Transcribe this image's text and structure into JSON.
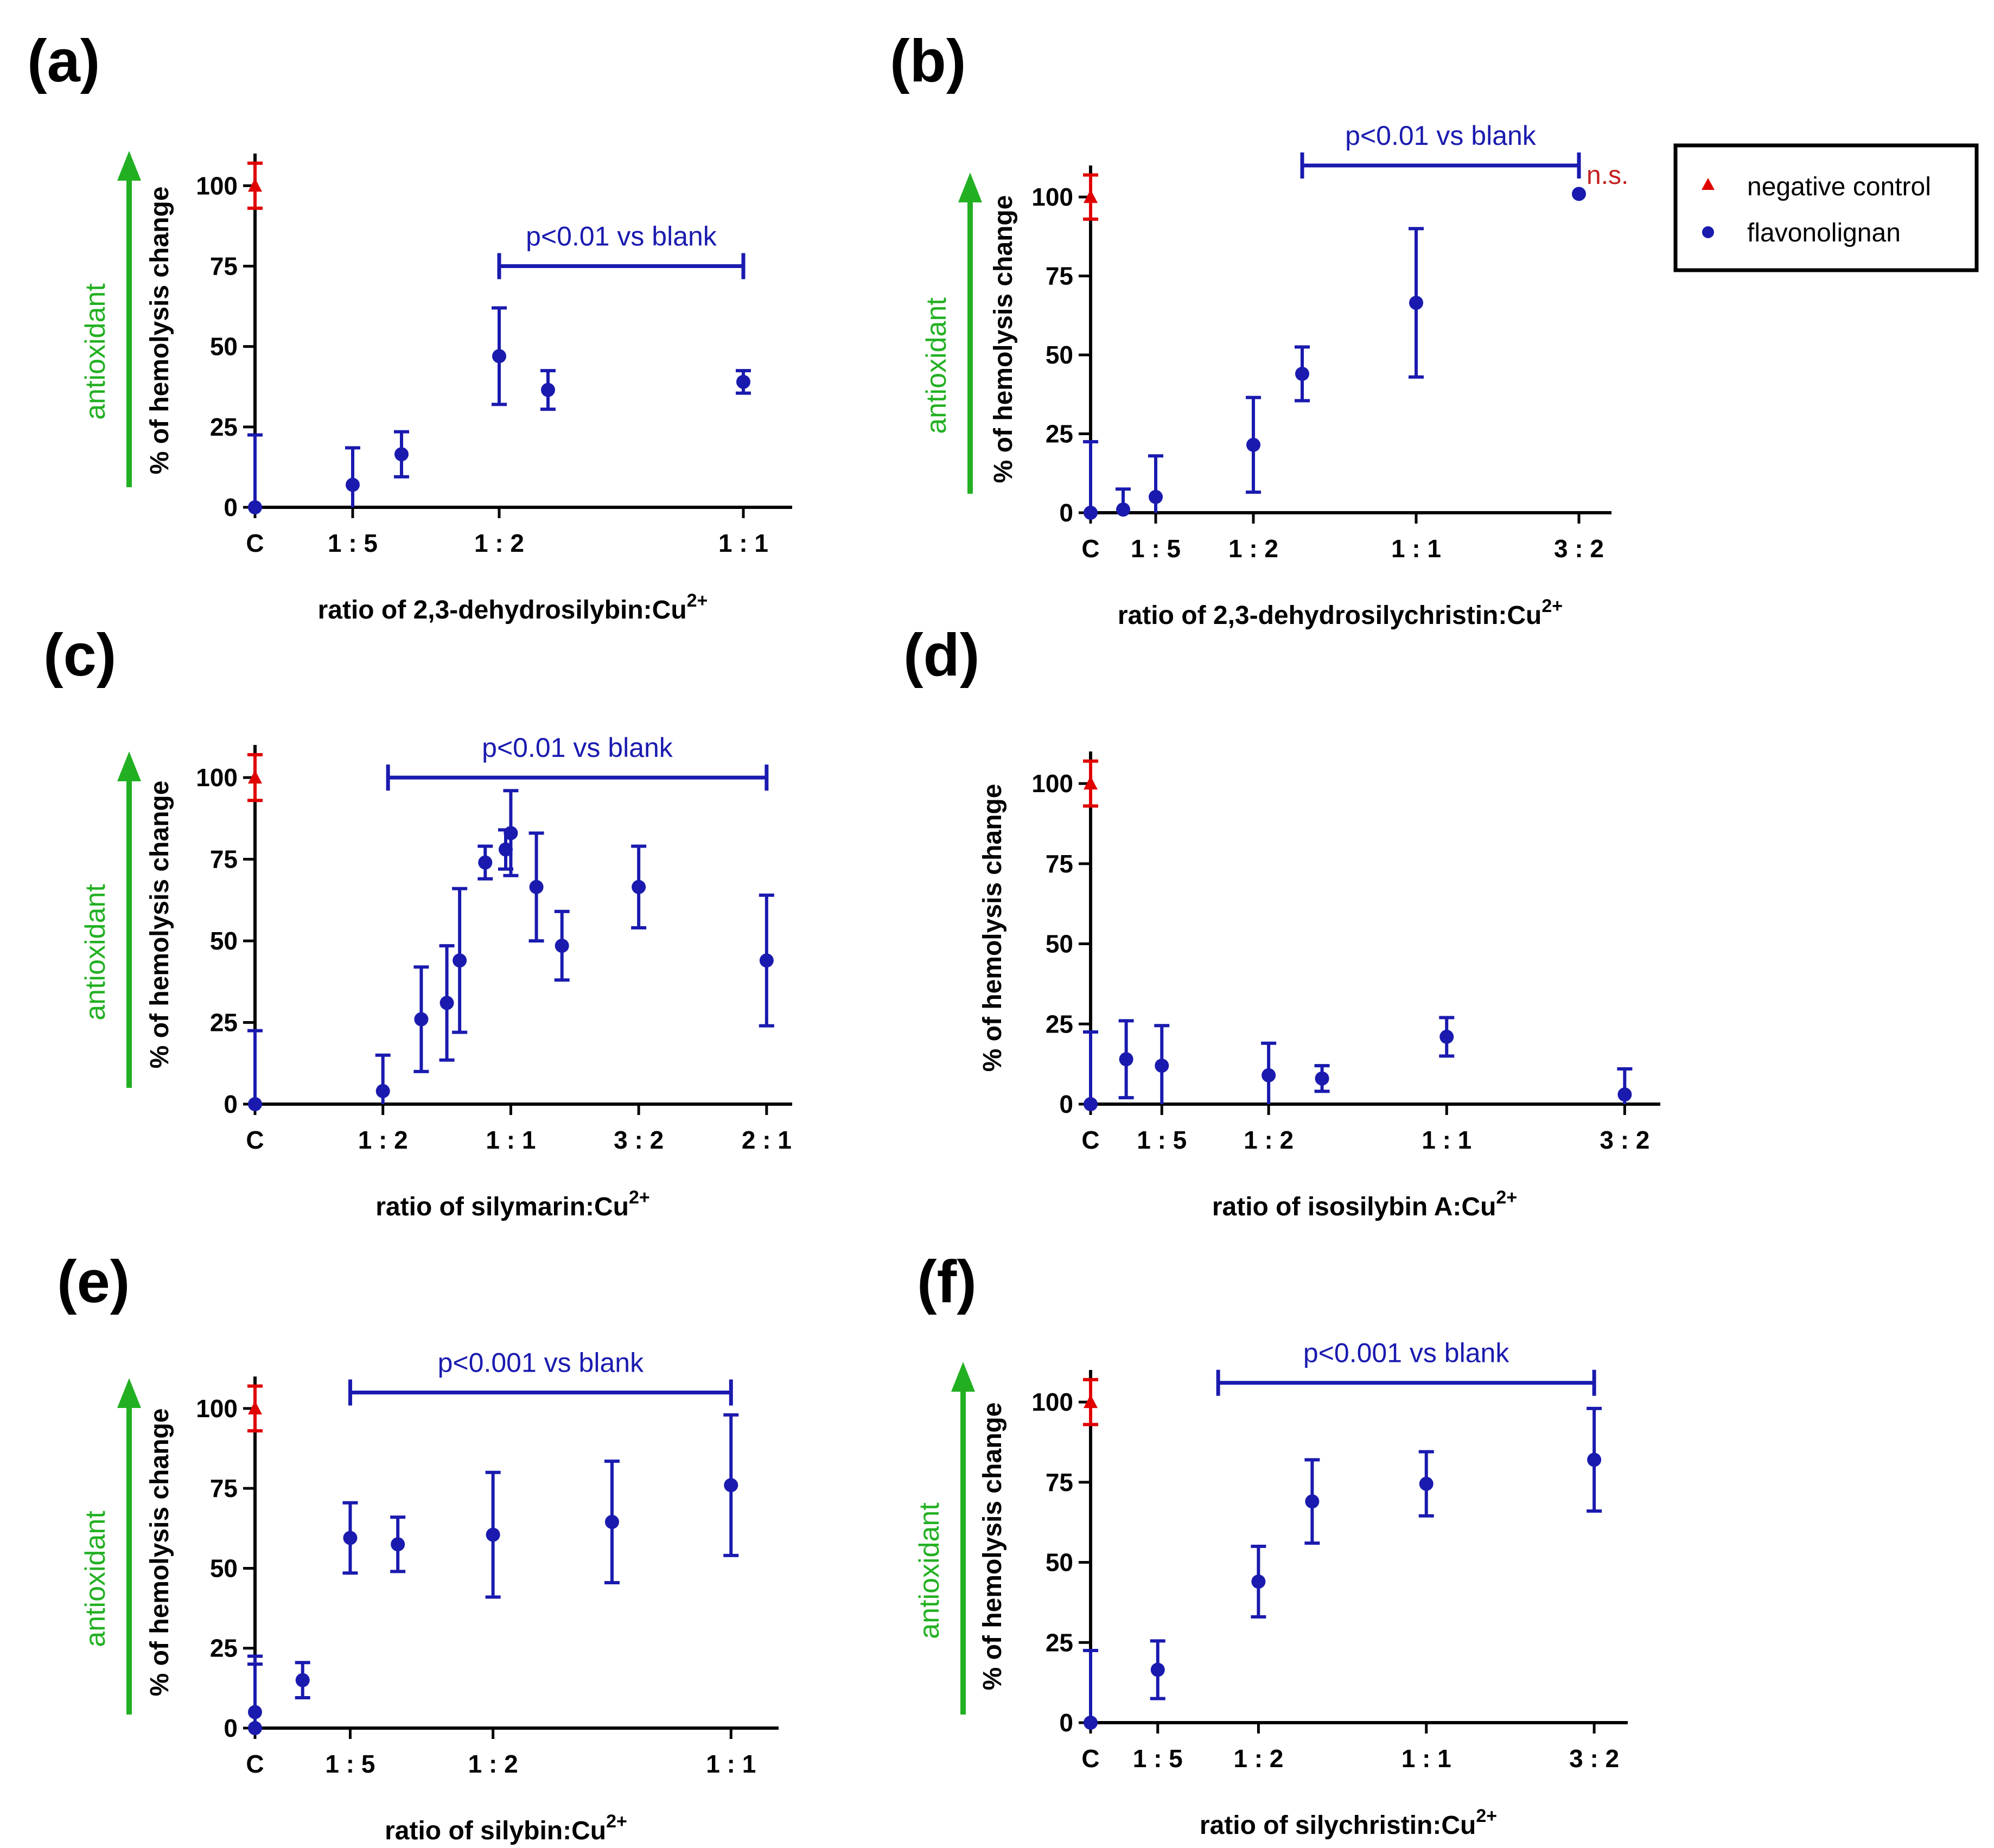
{
  "colors": {
    "flavonolignan": "#1a1aaf",
    "negative_control": "#e00000",
    "antioxidant": "#22b022",
    "ns": "#c41e1e",
    "axis": "#000000"
  },
  "legend": {
    "items": [
      {
        "label": "negative control",
        "marker": "triangle",
        "color": "#e00000"
      },
      {
        "label": "flavonolignan",
        "marker": "circle",
        "color": "#1a1aaf"
      }
    ]
  },
  "annotations": {
    "antioxidant": "antioxidant",
    "ns": "n.s."
  },
  "chart_data": [
    {
      "panel": "(a)",
      "type": "scatter",
      "xlabel": "ratio of 2,3-dehydrosilybin:Cu",
      "xlabel_sup": "2+",
      "ylabel": "% of hemolysis change",
      "yticks": [
        0,
        25,
        50,
        75,
        100
      ],
      "ylim": [
        0,
        110
      ],
      "xlim": [
        0,
        1.1
      ],
      "xticks": [
        {
          "x": 0,
          "label": "C"
        },
        {
          "x": 0.2,
          "label": "1 : 5"
        },
        {
          "x": 0.5,
          "label": "1 : 2"
        },
        {
          "x": 1.0,
          "label": "1 : 1"
        }
      ],
      "negative_control": {
        "x": 0,
        "y": 100,
        "err": 7
      },
      "blank": {
        "x": 0,
        "y": 0,
        "err": 22.5
      },
      "series": [
        {
          "name": "flavonolignan",
          "points": [
            {
              "x": 0.2,
              "y": 7,
              "err": 11.5
            },
            {
              "x": 0.3,
              "y": 16.5,
              "err": 7
            },
            {
              "x": 0.5,
              "y": 47,
              "err": 15
            },
            {
              "x": 0.6,
              "y": 36.5,
              "err": 6
            },
            {
              "x": 1.0,
              "y": 39,
              "err": 3.5
            }
          ]
        }
      ],
      "bracket": {
        "label": "p<0.01 vs blank",
        "x_from": 0.5,
        "x_to": 1.0,
        "y": 75
      }
    },
    {
      "panel": "(b)",
      "type": "scatter",
      "xlabel": "ratio of 2,3-dehydrosilychristin:Cu",
      "xlabel_sup": "2+",
      "ylabel": "% of hemolysis change",
      "yticks": [
        0,
        25,
        50,
        75,
        100
      ],
      "ylim": [
        0,
        110
      ],
      "xlim": [
        0,
        1.6
      ],
      "xticks": [
        {
          "x": 0,
          "label": "C"
        },
        {
          "x": 0.2,
          "label": "1 : 5"
        },
        {
          "x": 0.5,
          "label": "1 : 2"
        },
        {
          "x": 1.0,
          "label": "1 : 1"
        },
        {
          "x": 1.5,
          "label": "3 : 2"
        }
      ],
      "negative_control": {
        "x": 0,
        "y": 100,
        "err": 7
      },
      "blank": {
        "x": 0,
        "y": 0,
        "err": 22.5
      },
      "series": [
        {
          "name": "flavonolignan",
          "points": [
            {
              "x": 0.1,
              "y": 1,
              "err": 6.5
            },
            {
              "x": 0.2,
              "y": 5,
              "err": 13
            },
            {
              "x": 0.5,
              "y": 21.5,
              "err": 15
            },
            {
              "x": 0.65,
              "y": 44,
              "err": 8.5
            },
            {
              "x": 1.0,
              "y": 66.5,
              "err": 23.5
            },
            {
              "x": 1.5,
              "y": 101,
              "err": 0
            }
          ]
        }
      ],
      "bracket": {
        "label": "p<0.01 vs blank",
        "x_from": 0.65,
        "x_to": 1.5,
        "y": 110
      },
      "ns_at_x": 1.5
    },
    {
      "panel": "(c)",
      "type": "scatter",
      "xlabel": "ratio of silymarin:Cu",
      "xlabel_sup": "2+",
      "ylabel": "% of hemolysis change",
      "yticks": [
        0,
        25,
        50,
        75,
        100
      ],
      "ylim": [
        0,
        110
      ],
      "xlim": [
        0,
        2.1
      ],
      "xticks": [
        {
          "x": 0,
          "label": "C"
        },
        {
          "x": 0.5,
          "label": "1 : 2"
        },
        {
          "x": 1.0,
          "label": "1 : 1"
        },
        {
          "x": 1.5,
          "label": "3 : 2"
        },
        {
          "x": 2.0,
          "label": "2 : 1"
        }
      ],
      "negative_control": {
        "x": 0,
        "y": 100,
        "err": 7
      },
      "blank": {
        "x": 0,
        "y": 0,
        "err": 22.5
      },
      "series": [
        {
          "name": "flavonolignan",
          "points": [
            {
              "x": 0.5,
              "y": 4,
              "err": 11
            },
            {
              "x": 0.65,
              "y": 26,
              "err": 16
            },
            {
              "x": 0.75,
              "y": 31,
              "err": 17.5
            },
            {
              "x": 0.8,
              "y": 44,
              "err": 22
            },
            {
              "x": 0.9,
              "y": 74,
              "err": 5
            },
            {
              "x": 0.98,
              "y": 78,
              "err": 6
            },
            {
              "x": 1.0,
              "y": 83,
              "err": 13
            },
            {
              "x": 1.1,
              "y": 66.5,
              "err": 16.5
            },
            {
              "x": 1.2,
              "y": 48.5,
              "err": 10.5
            },
            {
              "x": 1.5,
              "y": 66.5,
              "err": 12.5
            },
            {
              "x": 2.0,
              "y": 44,
              "err": 20
            }
          ]
        }
      ],
      "bracket": {
        "label": "p<0.01 vs blank",
        "x_from": 0.52,
        "x_to": 2.0,
        "y": 100
      }
    },
    {
      "panel": "(d)",
      "type": "scatter",
      "xlabel": "ratio of isosilybin A:Cu",
      "xlabel_sup": "2+",
      "ylabel": "% of hemolysis change",
      "yticks": [
        0,
        25,
        50,
        75,
        100
      ],
      "ylim": [
        0,
        110
      ],
      "xlim": [
        0,
        1.6
      ],
      "xticks": [
        {
          "x": 0,
          "label": "C"
        },
        {
          "x": 0.2,
          "label": "1 : 5"
        },
        {
          "x": 0.5,
          "label": "1 : 2"
        },
        {
          "x": 1.0,
          "label": "1 : 1"
        },
        {
          "x": 1.5,
          "label": "3 : 2"
        }
      ],
      "negative_control": {
        "x": 0,
        "y": 100,
        "err": 7
      },
      "blank": {
        "x": 0,
        "y": 0,
        "err": 22.5
      },
      "series": [
        {
          "name": "flavonolignan",
          "points": [
            {
              "x": 0.1,
              "y": 14,
              "err": 12
            },
            {
              "x": 0.2,
              "y": 12,
              "err": 12.5
            },
            {
              "x": 0.5,
              "y": 9,
              "err": 10
            },
            {
              "x": 0.65,
              "y": 8,
              "err": 4
            },
            {
              "x": 1.0,
              "y": 21,
              "err": 6
            },
            {
              "x": 1.5,
              "y": 3,
              "err": 8
            }
          ]
        }
      ]
    },
    {
      "panel": "(e)",
      "type": "scatter",
      "xlabel": "ratio of silybin:Cu",
      "xlabel_sup": "2+",
      "ylabel": "% of hemolysis change",
      "yticks": [
        0,
        25,
        50,
        75,
        100
      ],
      "ylim": [
        0,
        110
      ],
      "xlim": [
        0,
        1.1
      ],
      "xticks": [
        {
          "x": 0,
          "label": "C"
        },
        {
          "x": 0.2,
          "label": "1 : 5"
        },
        {
          "x": 0.5,
          "label": "1 : 2"
        },
        {
          "x": 1.0,
          "label": "1 : 1"
        }
      ],
      "negative_control": {
        "x": 0,
        "y": 100,
        "err": 7
      },
      "blank": {
        "x": 0,
        "y": 0,
        "err": 22.5
      },
      "series": [
        {
          "name": "flavonolignan",
          "points": [
            {
              "x": 0,
              "y": 5,
              "err": 15
            },
            {
              "x": 0.1,
              "y": 15,
              "err": 5.5
            },
            {
              "x": 0.2,
              "y": 59.5,
              "err": 11
            },
            {
              "x": 0.3,
              "y": 57.5,
              "err": 8.5
            },
            {
              "x": 0.5,
              "y": 60.5,
              "err": 19.5
            },
            {
              "x": 0.75,
              "y": 64.5,
              "err": 19
            },
            {
              "x": 1.0,
              "y": 76,
              "err": 22
            }
          ]
        }
      ],
      "bracket": {
        "label": "p<0.001 vs blank",
        "x_from": 0.2,
        "x_to": 1.0,
        "y": 105
      }
    },
    {
      "panel": "(f)",
      "type": "scatter",
      "xlabel": "ratio of silychristin:Cu",
      "xlabel_sup": "2+",
      "ylabel": "% of hemolysis change",
      "yticks": [
        0,
        25,
        50,
        75,
        100
      ],
      "ylim": [
        0,
        110
      ],
      "xlim": [
        0,
        1.6
      ],
      "xticks": [
        {
          "x": 0,
          "label": "C"
        },
        {
          "x": 0.2,
          "label": "1 : 5"
        },
        {
          "x": 0.5,
          "label": "1 : 2"
        },
        {
          "x": 1.0,
          "label": "1 : 1"
        },
        {
          "x": 1.5,
          "label": "3 : 2"
        }
      ],
      "negative_control": {
        "x": 0,
        "y": 100,
        "err": 7
      },
      "blank": {
        "x": 0,
        "y": 0,
        "err": 22.5
      },
      "series": [
        {
          "name": "flavonolignan",
          "points": [
            {
              "x": 0.2,
              "y": 16.5,
              "err": 9
            },
            {
              "x": 0.5,
              "y": 44,
              "err": 11
            },
            {
              "x": 0.66,
              "y": 69,
              "err": 13
            },
            {
              "x": 1.0,
              "y": 74.5,
              "err": 10
            },
            {
              "x": 1.5,
              "y": 82,
              "err": 16
            }
          ]
        }
      ],
      "bracket": {
        "label": "p<0.001 vs blank",
        "x_from": 0.38,
        "x_to": 1.5,
        "y": 106
      }
    }
  ]
}
